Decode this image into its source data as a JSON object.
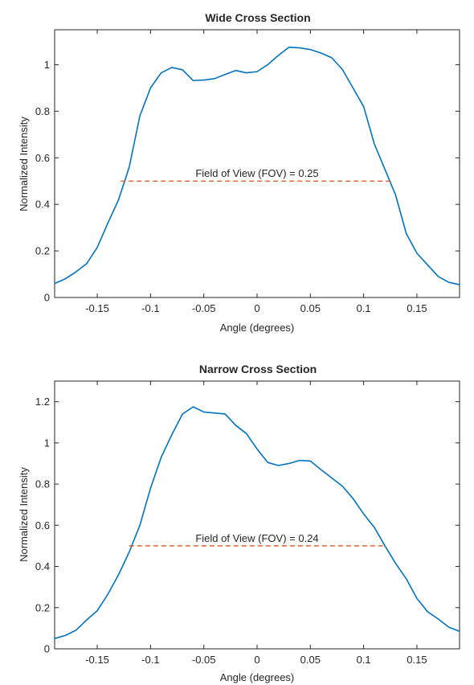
{
  "chart_data": [
    {
      "type": "line",
      "title": "Wide Cross Section",
      "xlabel": "Angle (degrees)",
      "ylabel": "Normalized Intensity",
      "xlim": [
        -0.19,
        0.19
      ],
      "ylim": [
        0,
        1.15
      ],
      "xticks": [
        -0.15,
        -0.1,
        -0.05,
        0,
        0.05,
        0.1,
        0.15
      ],
      "xtick_labels": [
        "-0.15",
        "-0.1",
        "-0.05",
        "0",
        "0.05",
        "0.1",
        "0.15"
      ],
      "yticks": [
        0,
        0.2,
        0.4,
        0.6,
        0.8,
        1
      ],
      "ytick_labels": [
        "0",
        "0.2",
        "0.4",
        "0.6",
        "0.8",
        "1"
      ],
      "grid": false,
      "series": [
        {
          "color": "#0072BD",
          "x": [
            -0.19,
            -0.18,
            -0.17,
            -0.16,
            -0.15,
            -0.14,
            -0.13,
            -0.12,
            -0.11,
            -0.1,
            -0.09,
            -0.08,
            -0.07,
            -0.06,
            -0.05,
            -0.04,
            -0.03,
            -0.02,
            -0.01,
            0,
            0.01,
            0.02,
            0.03,
            0.04,
            0.05,
            0.06,
            0.07,
            0.08,
            0.09,
            0.1,
            0.11,
            0.12,
            0.13,
            0.14,
            0.15,
            0.16,
            0.17,
            0.18,
            0.19
          ],
          "y": [
            0.06,
            0.08,
            0.11,
            0.145,
            0.215,
            0.32,
            0.42,
            0.56,
            0.78,
            0.9,
            0.965,
            0.988,
            0.978,
            0.932,
            0.934,
            0.94,
            0.958,
            0.975,
            0.965,
            0.97,
            1.0,
            1.04,
            1.075,
            1.072,
            1.065,
            1.05,
            1.03,
            0.98,
            0.9,
            0.82,
            0.66,
            0.55,
            0.44,
            0.275,
            0.19,
            0.14,
            0.09,
            0.065,
            0.055
          ]
        },
        {
          "color": "#D95319",
          "style": "dashed",
          "x": [
            -0.128,
            0.125
          ],
          "y": [
            0.5,
            0.5
          ]
        }
      ],
      "annotations": [
        {
          "text": "Field of View (FOV) = 0.25",
          "x": 0.0,
          "y": 0.5
        }
      ]
    },
    {
      "type": "line",
      "title": "Narrow Cross Section",
      "xlabel": "Angle (degrees)",
      "ylabel": "Normalized Intensity",
      "xlim": [
        -0.19,
        0.19
      ],
      "ylim": [
        0,
        1.3
      ],
      "xticks": [
        -0.15,
        -0.1,
        -0.05,
        0,
        0.05,
        0.1,
        0.15
      ],
      "xtick_labels": [
        "-0.15",
        "-0.1",
        "-0.05",
        "0",
        "0.05",
        "0.1",
        "0.15"
      ],
      "yticks": [
        0,
        0.2,
        0.4,
        0.6,
        0.8,
        1,
        1.2
      ],
      "ytick_labels": [
        "0",
        "0.2",
        "0.4",
        "0.6",
        "0.8",
        "1",
        "1.2"
      ],
      "grid": false,
      "series": [
        {
          "color": "#0072BD",
          "x": [
            -0.19,
            -0.18,
            -0.17,
            -0.16,
            -0.15,
            -0.14,
            -0.13,
            -0.12,
            -0.11,
            -0.1,
            -0.09,
            -0.08,
            -0.07,
            -0.06,
            -0.05,
            -0.04,
            -0.03,
            -0.02,
            -0.01,
            0,
            0.01,
            0.02,
            0.03,
            0.04,
            0.05,
            0.06,
            0.07,
            0.08,
            0.09,
            0.1,
            0.11,
            0.12,
            0.13,
            0.14,
            0.15,
            0.16,
            0.17,
            0.18,
            0.19
          ],
          "y": [
            0.05,
            0.065,
            0.09,
            0.14,
            0.185,
            0.265,
            0.36,
            0.47,
            0.6,
            0.78,
            0.93,
            1.04,
            1.14,
            1.175,
            1.15,
            1.145,
            1.14,
            1.085,
            1.045,
            0.97,
            0.905,
            0.89,
            0.9,
            0.915,
            0.912,
            0.87,
            0.83,
            0.79,
            0.73,
            0.655,
            0.59,
            0.5,
            0.415,
            0.34,
            0.245,
            0.18,
            0.145,
            0.105,
            0.085
          ]
        },
        {
          "color": "#D95319",
          "style": "dashed",
          "x": [
            -0.12,
            0.118
          ],
          "y": [
            0.5,
            0.5
          ]
        }
      ],
      "annotations": [
        {
          "text": "Field of View (FOV) = 0.24",
          "x": 0.0,
          "y": 0.5
        }
      ]
    }
  ]
}
